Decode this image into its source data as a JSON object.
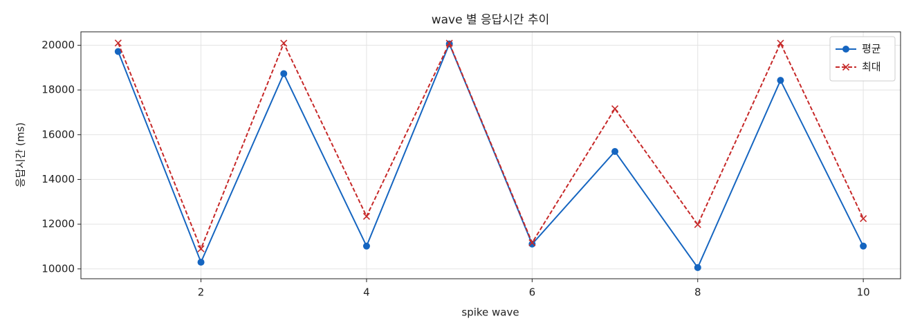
{
  "chart_data": {
    "type": "line",
    "title": "wave 별 응답시간 추이",
    "x_label": "spike wave",
    "y_label": "응답시간 (ms)",
    "x": [
      1,
      2,
      3,
      4,
      5,
      6,
      7,
      8,
      9,
      10
    ],
    "series": [
      {
        "name": "평균",
        "color": "#1565c0",
        "marker": "o",
        "dashed": false,
        "values": [
          19720,
          10300,
          18730,
          11020,
          20060,
          11110,
          15250,
          10060,
          18430,
          11020
        ]
      },
      {
        "name": "최대",
        "color": "#c62828",
        "marker": "x",
        "dashed": true,
        "values": [
          20100,
          10900,
          20090,
          12350,
          20090,
          11170,
          17160,
          11980,
          20090,
          12250
        ]
      }
    ],
    "xlim": [
      0.55,
      10.45
    ],
    "ylim": [
      9560,
      20600
    ],
    "xticks": [
      2,
      4,
      6,
      8,
      10
    ],
    "yticks": [
      10000,
      12000,
      14000,
      16000,
      18000,
      20000
    ],
    "grid": true,
    "legend": "upper right"
  }
}
